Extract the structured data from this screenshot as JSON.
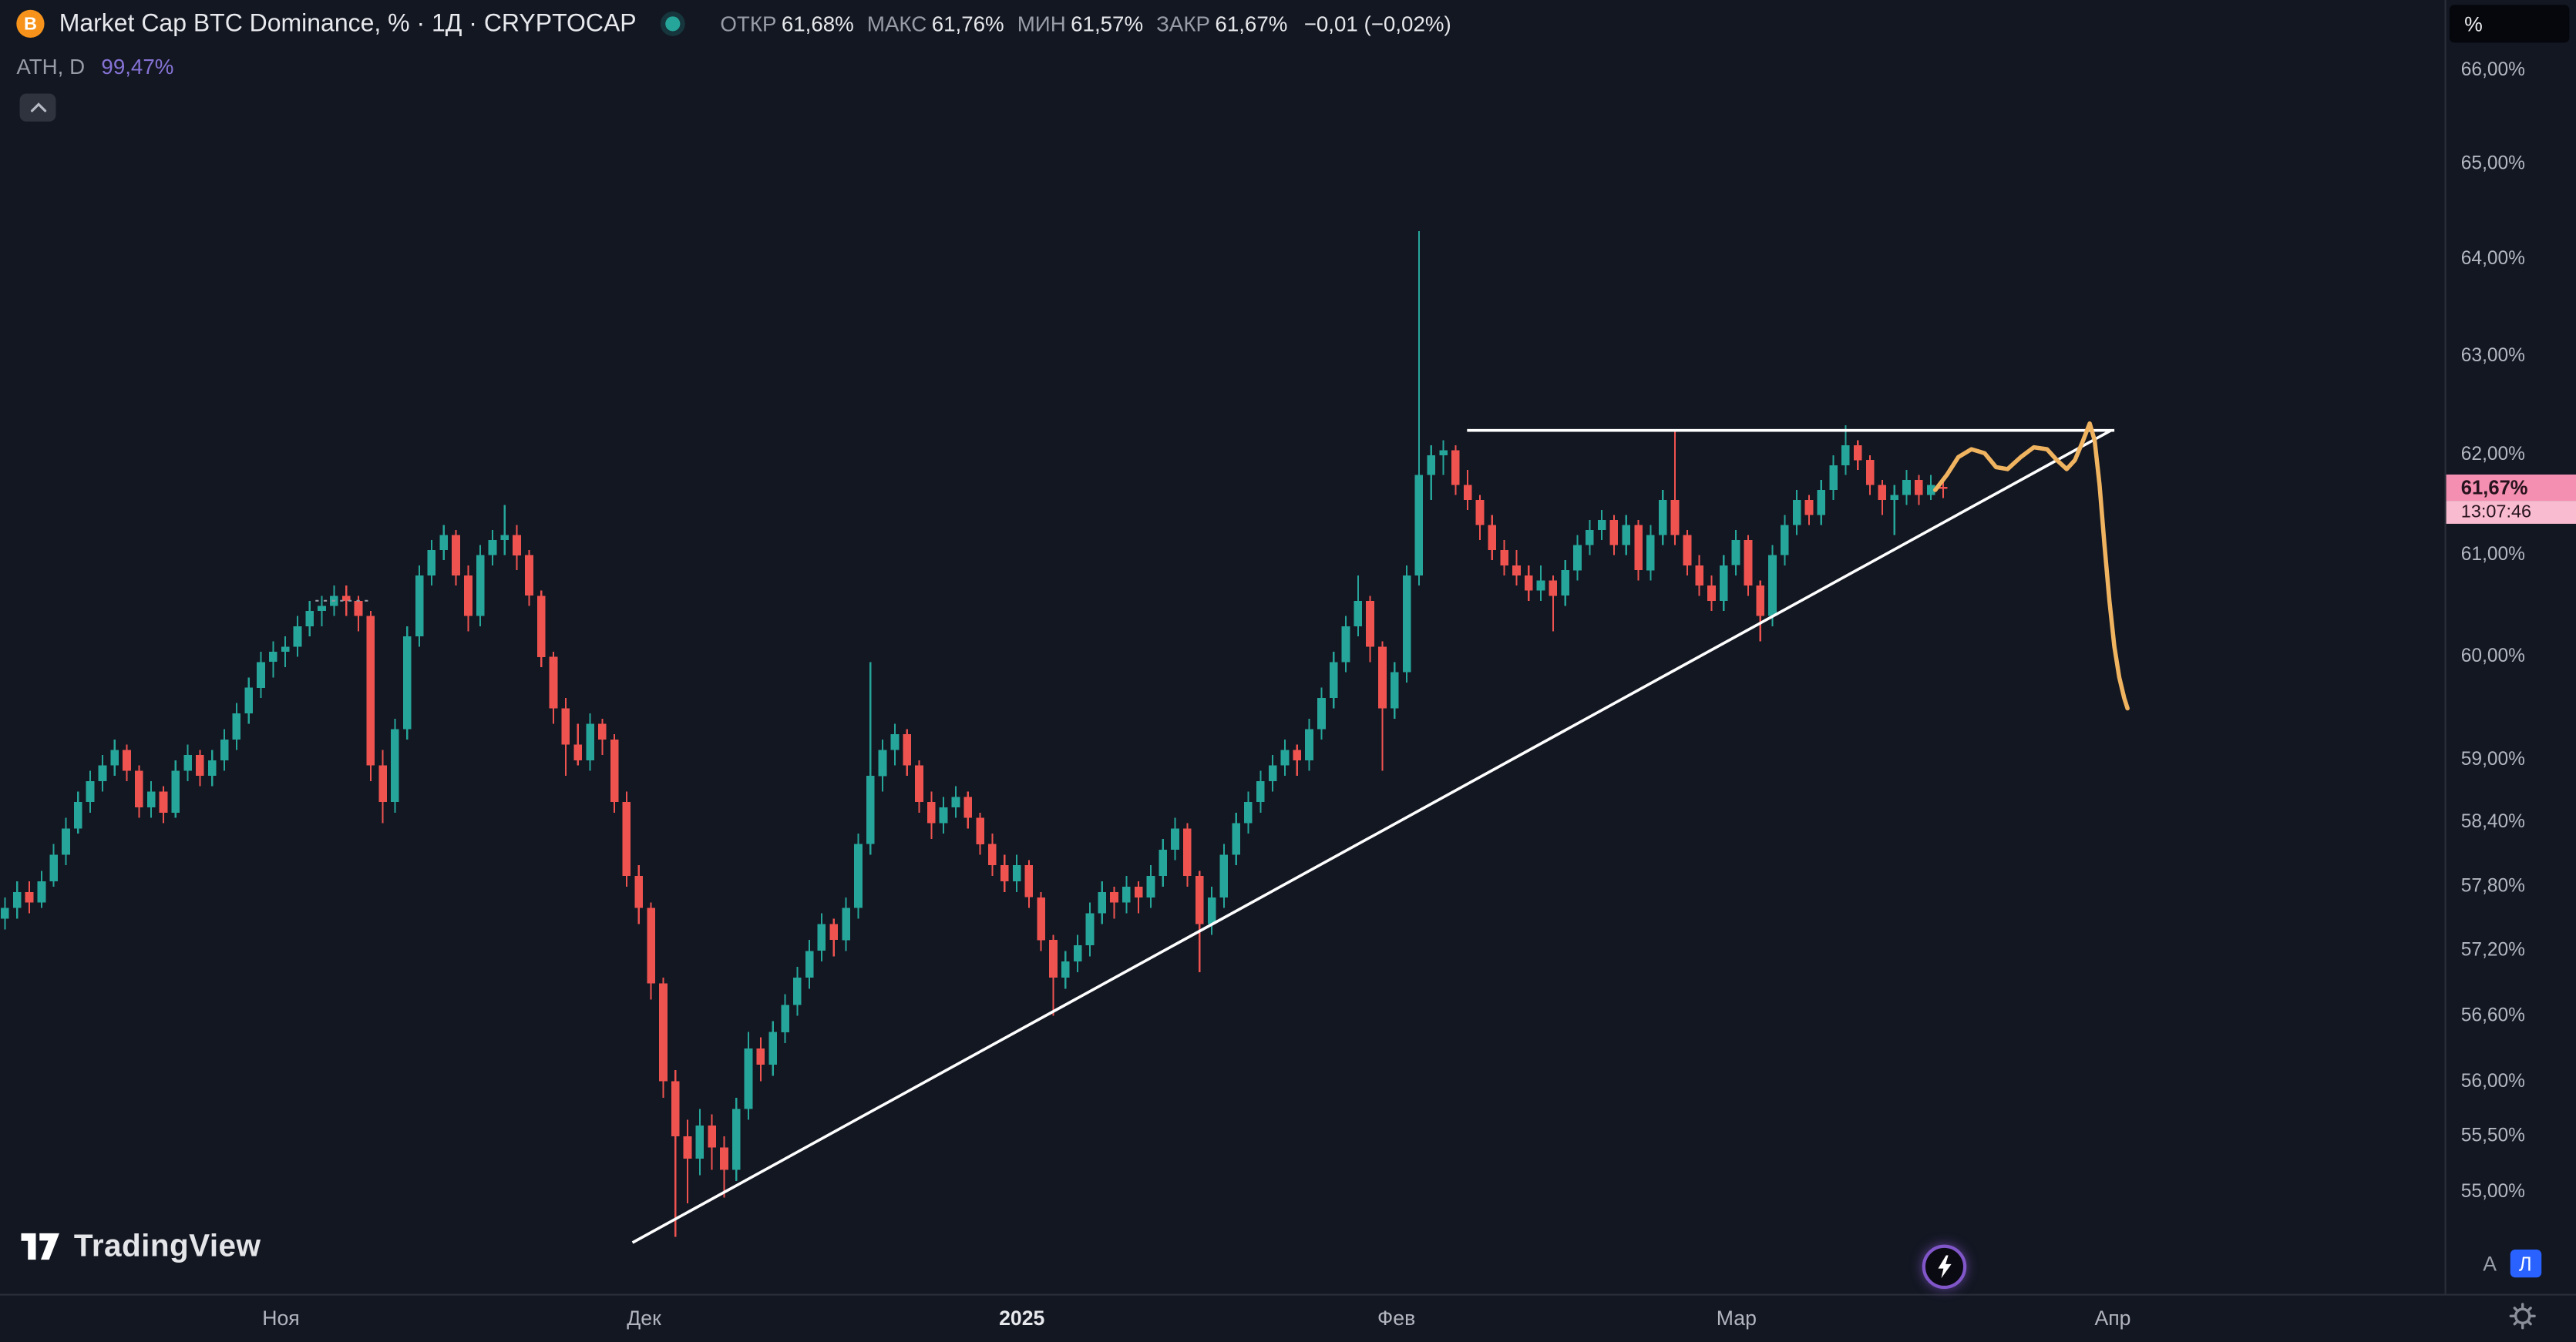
{
  "header": {
    "symbol_title": "Market Cap BTC Dominance, % · 1Д · CRYPTOCAP",
    "btc_icon_letter": "B",
    "ohlc": {
      "open_label": "ОТКР",
      "open": "61,68%",
      "high_label": "МАКС",
      "high": "61,76%",
      "low_label": "МИН",
      "low": "61,57%",
      "close_label": "ЗАКР",
      "close": "61,67%",
      "change": "−0,01 (−0,02%)"
    },
    "indicator": {
      "name": "ATH, D",
      "value": "99,47%"
    }
  },
  "price_scale": {
    "unit": "%",
    "labels": [
      {
        "text": "66,00%",
        "price": 66.0
      },
      {
        "text": "65,00%",
        "price": 65.0
      },
      {
        "text": "64,00%",
        "price": 64.0
      },
      {
        "text": "63,00%",
        "price": 63.0
      },
      {
        "text": "62,00%",
        "price": 62.0
      },
      {
        "text": "61,00%",
        "price": 61.0
      },
      {
        "text": "60,00%",
        "price": 60.0
      },
      {
        "text": "59,00%",
        "price": 59.0
      },
      {
        "text": "58,40%",
        "price": 58.4
      },
      {
        "text": "57,80%",
        "price": 57.8
      },
      {
        "text": "57,20%",
        "price": 57.2
      },
      {
        "text": "56,60%",
        "price": 56.6
      },
      {
        "text": "56,00%",
        "price": 56.0
      },
      {
        "text": "55,50%",
        "price": 55.5
      },
      {
        "text": "55,00%",
        "price": 55.0
      }
    ],
    "current": {
      "price": 61.67,
      "price_text": "61,67%",
      "countdown": "13:07:46"
    },
    "auto_label": "А",
    "log_label": "Л"
  },
  "time_scale": {
    "ticks": [
      {
        "label": "Ноя",
        "x": 171
      },
      {
        "label": "Дек",
        "x": 392
      },
      {
        "label": "2025",
        "x": 622,
        "year": true
      },
      {
        "label": "Фев",
        "x": 850
      },
      {
        "label": "Мар",
        "x": 1057
      },
      {
        "label": "Апр",
        "x": 1286
      }
    ]
  },
  "logo": {
    "text": "TradingView"
  },
  "colors": {
    "bg": "#131722",
    "panel_border": "#2a2e39",
    "up": "#26a69a",
    "down": "#ef5350",
    "white": "#ffffff",
    "orange": "#f0b35f",
    "muted": "#9598a1",
    "badge_pink": "#f48fb1",
    "badge_pink_light": "#f8bbd0",
    "accent_blue": "#2962ff",
    "purple": "#8673d6"
  },
  "chart_data": {
    "type": "candlestick",
    "title": "Market Cap BTC Dominance, % · 1Д · CRYPTOCAP",
    "ylabel": "%",
    "scale": "log",
    "ylim": [
      54.5,
      66.3
    ],
    "x_axis": {
      "x0": 3,
      "step": 7.42
    },
    "y_axis": {
      "price_top": 66.0,
      "y_top": 43,
      "price_bottom": 55.0,
      "y_bottom": 726
    },
    "candles": [
      [
        57.5,
        57.7,
        57.4,
        57.6
      ],
      [
        57.6,
        57.85,
        57.5,
        57.75
      ],
      [
        57.75,
        57.85,
        57.55,
        57.65
      ],
      [
        57.65,
        57.95,
        57.6,
        57.85
      ],
      [
        57.85,
        58.2,
        57.8,
        58.1
      ],
      [
        58.1,
        58.45,
        58.0,
        58.35
      ],
      [
        58.35,
        58.7,
        58.3,
        58.6
      ],
      [
        58.6,
        58.9,
        58.5,
        58.8
      ],
      [
        58.8,
        59.05,
        58.7,
        58.95
      ],
      [
        58.95,
        59.2,
        58.85,
        59.1
      ],
      [
        59.1,
        59.15,
        58.8,
        58.9
      ],
      [
        58.9,
        58.95,
        58.45,
        58.55
      ],
      [
        58.55,
        58.8,
        58.45,
        58.7
      ],
      [
        58.7,
        58.75,
        58.4,
        58.5
      ],
      [
        58.5,
        59.0,
        58.45,
        58.9
      ],
      [
        58.9,
        59.15,
        58.8,
        59.05
      ],
      [
        59.05,
        59.1,
        58.75,
        58.85
      ],
      [
        58.85,
        59.1,
        58.75,
        59.0
      ],
      [
        59.0,
        59.3,
        58.9,
        59.2
      ],
      [
        59.2,
        59.55,
        59.1,
        59.45
      ],
      [
        59.45,
        59.8,
        59.35,
        59.7
      ],
      [
        59.7,
        60.05,
        59.6,
        59.95
      ],
      [
        59.95,
        60.15,
        59.8,
        60.05
      ],
      [
        60.05,
        60.2,
        59.9,
        60.1
      ],
      [
        60.1,
        60.4,
        60.0,
        60.3
      ],
      [
        60.3,
        60.55,
        60.2,
        60.45
      ],
      [
        60.45,
        60.6,
        60.3,
        60.5
      ],
      [
        60.5,
        60.7,
        60.4,
        60.6
      ],
      [
        60.6,
        60.7,
        60.4,
        60.55
      ],
      [
        60.55,
        60.6,
        60.25,
        60.4
      ],
      [
        60.4,
        60.45,
        58.8,
        58.95
      ],
      [
        58.95,
        59.1,
        58.4,
        58.6
      ],
      [
        58.6,
        59.4,
        58.5,
        59.3
      ],
      [
        59.3,
        60.3,
        59.2,
        60.2
      ],
      [
        60.2,
        60.9,
        60.1,
        60.8
      ],
      [
        60.8,
        61.15,
        60.7,
        61.05
      ],
      [
        61.05,
        61.3,
        60.95,
        61.2
      ],
      [
        61.2,
        61.25,
        60.7,
        60.8
      ],
      [
        60.8,
        60.9,
        60.25,
        60.4
      ],
      [
        60.4,
        61.1,
        60.3,
        61.0
      ],
      [
        61.0,
        61.25,
        60.9,
        61.15
      ],
      [
        61.15,
        61.5,
        61.0,
        61.2
      ],
      [
        61.2,
        61.3,
        60.85,
        61.0
      ],
      [
        61.0,
        61.05,
        60.5,
        60.6
      ],
      [
        60.6,
        60.65,
        59.9,
        60.0
      ],
      [
        60.0,
        60.05,
        59.35,
        59.5
      ],
      [
        59.5,
        59.6,
        58.85,
        59.15
      ],
      [
        59.15,
        59.35,
        58.95,
        59.0
      ],
      [
        59.0,
        59.45,
        58.9,
        59.35
      ],
      [
        59.35,
        59.4,
        59.05,
        59.2
      ],
      [
        59.2,
        59.25,
        58.5,
        58.6
      ],
      [
        58.6,
        58.7,
        57.8,
        57.9
      ],
      [
        57.9,
        58.0,
        57.45,
        57.6
      ],
      [
        57.6,
        57.65,
        56.75,
        56.9
      ],
      [
        56.9,
        56.95,
        55.85,
        56.0
      ],
      [
        56.0,
        56.1,
        54.6,
        55.5
      ],
      [
        55.5,
        55.65,
        54.9,
        55.3
      ],
      [
        55.3,
        55.75,
        55.15,
        55.6
      ],
      [
        55.6,
        55.7,
        55.2,
        55.4
      ],
      [
        55.4,
        55.5,
        54.95,
        55.2
      ],
      [
        55.2,
        55.85,
        55.1,
        55.75
      ],
      [
        55.75,
        56.45,
        55.65,
        56.3
      ],
      [
        56.3,
        56.4,
        56.0,
        56.15
      ],
      [
        56.15,
        56.55,
        56.05,
        56.45
      ],
      [
        56.45,
        56.8,
        56.35,
        56.7
      ],
      [
        56.7,
        57.05,
        56.6,
        56.95
      ],
      [
        56.95,
        57.3,
        56.85,
        57.2
      ],
      [
        57.2,
        57.55,
        57.1,
        57.45
      ],
      [
        57.45,
        57.5,
        57.15,
        57.3
      ],
      [
        57.3,
        57.7,
        57.2,
        57.6
      ],
      [
        57.6,
        58.3,
        57.5,
        58.2
      ],
      [
        58.2,
        59.95,
        58.1,
        58.85
      ],
      [
        58.85,
        59.2,
        58.7,
        59.1
      ],
      [
        59.1,
        59.35,
        58.95,
        59.25
      ],
      [
        59.25,
        59.3,
        58.85,
        58.95
      ],
      [
        58.95,
        59.0,
        58.5,
        58.6
      ],
      [
        58.6,
        58.7,
        58.25,
        58.4
      ],
      [
        58.4,
        58.65,
        58.3,
        58.55
      ],
      [
        58.55,
        58.75,
        58.45,
        58.65
      ],
      [
        58.65,
        58.7,
        58.35,
        58.45
      ],
      [
        58.45,
        58.5,
        58.1,
        58.2
      ],
      [
        58.2,
        58.3,
        57.9,
        58.0
      ],
      [
        58.0,
        58.1,
        57.75,
        57.85
      ],
      [
        57.85,
        58.1,
        57.75,
        58.0
      ],
      [
        58.0,
        58.05,
        57.6,
        57.7
      ],
      [
        57.7,
        57.75,
        57.2,
        57.3
      ],
      [
        57.3,
        57.35,
        56.6,
        56.95
      ],
      [
        56.95,
        57.2,
        56.85,
        57.1
      ],
      [
        57.1,
        57.35,
        57.0,
        57.25
      ],
      [
        57.25,
        57.65,
        57.15,
        57.55
      ],
      [
        57.55,
        57.85,
        57.45,
        57.75
      ],
      [
        57.75,
        57.8,
        57.5,
        57.65
      ],
      [
        57.65,
        57.9,
        57.55,
        57.8
      ],
      [
        57.8,
        57.85,
        57.55,
        57.7
      ],
      [
        57.7,
        58.0,
        57.6,
        57.9
      ],
      [
        57.9,
        58.25,
        57.8,
        58.15
      ],
      [
        58.15,
        58.45,
        58.05,
        58.35
      ],
      [
        58.35,
        58.4,
        57.8,
        57.9
      ],
      [
        57.9,
        57.95,
        57.0,
        57.45
      ],
      [
        57.45,
        57.8,
        57.35,
        57.7
      ],
      [
        57.7,
        58.2,
        57.6,
        58.1
      ],
      [
        58.1,
        58.5,
        58.0,
        58.4
      ],
      [
        58.4,
        58.7,
        58.3,
        58.6
      ],
      [
        58.6,
        58.9,
        58.5,
        58.8
      ],
      [
        58.8,
        59.05,
        58.7,
        58.95
      ],
      [
        58.95,
        59.2,
        58.85,
        59.1
      ],
      [
        59.1,
        59.15,
        58.85,
        59.0
      ],
      [
        59.0,
        59.4,
        58.9,
        59.3
      ],
      [
        59.3,
        59.7,
        59.2,
        59.6
      ],
      [
        59.6,
        60.05,
        59.5,
        59.95
      ],
      [
        59.95,
        60.4,
        59.85,
        60.3
      ],
      [
        60.3,
        60.8,
        60.2,
        60.55
      ],
      [
        60.55,
        60.6,
        59.95,
        60.1
      ],
      [
        60.1,
        60.15,
        58.9,
        59.5
      ],
      [
        59.5,
        59.95,
        59.4,
        59.85
      ],
      [
        59.85,
        60.9,
        59.75,
        60.8
      ],
      [
        60.8,
        64.3,
        60.7,
        61.8
      ],
      [
        61.8,
        62.1,
        61.55,
        62.0
      ],
      [
        62.0,
        62.15,
        61.8,
        62.05
      ],
      [
        62.05,
        62.1,
        61.6,
        61.7
      ],
      [
        61.7,
        61.85,
        61.45,
        61.55
      ],
      [
        61.55,
        61.6,
        61.15,
        61.3
      ],
      [
        61.3,
        61.4,
        60.95,
        61.05
      ],
      [
        61.05,
        61.15,
        60.8,
        60.9
      ],
      [
        60.9,
        61.05,
        60.7,
        60.8
      ],
      [
        60.8,
        60.9,
        60.55,
        60.65
      ],
      [
        60.65,
        60.9,
        60.55,
        60.75
      ],
      [
        60.75,
        60.8,
        60.25,
        60.6
      ],
      [
        60.6,
        60.95,
        60.5,
        60.85
      ],
      [
        60.85,
        61.2,
        60.75,
        61.1
      ],
      [
        61.1,
        61.35,
        61.0,
        61.25
      ],
      [
        61.25,
        61.45,
        61.15,
        61.35
      ],
      [
        61.35,
        61.4,
        61.0,
        61.1
      ],
      [
        61.1,
        61.4,
        61.0,
        61.3
      ],
      [
        61.3,
        61.35,
        60.75,
        60.85
      ],
      [
        60.85,
        61.3,
        60.75,
        61.2
      ],
      [
        61.2,
        61.65,
        61.1,
        61.55
      ],
      [
        61.55,
        62.25,
        61.1,
        61.2
      ],
      [
        61.2,
        61.25,
        60.8,
        60.9
      ],
      [
        60.9,
        61.0,
        60.6,
        60.7
      ],
      [
        60.7,
        60.8,
        60.45,
        60.55
      ],
      [
        60.55,
        61.0,
        60.45,
        60.9
      ],
      [
        60.9,
        61.25,
        60.8,
        61.15
      ],
      [
        61.15,
        61.2,
        60.6,
        60.7
      ],
      [
        60.7,
        60.75,
        60.15,
        60.4
      ],
      [
        60.4,
        61.1,
        60.3,
        61.0
      ],
      [
        61.0,
        61.4,
        60.9,
        61.3
      ],
      [
        61.3,
        61.65,
        61.2,
        61.55
      ],
      [
        61.55,
        61.6,
        61.3,
        61.4
      ],
      [
        61.4,
        61.75,
        61.3,
        61.65
      ],
      [
        61.65,
        62.0,
        61.55,
        61.9
      ],
      [
        61.9,
        62.3,
        61.8,
        62.1
      ],
      [
        62.1,
        62.15,
        61.85,
        61.95
      ],
      [
        61.95,
        62.0,
        61.6,
        61.7
      ],
      [
        61.7,
        61.75,
        61.4,
        61.55
      ],
      [
        61.55,
        61.7,
        61.2,
        61.6
      ],
      [
        61.6,
        61.85,
        61.5,
        61.75
      ],
      [
        61.75,
        61.8,
        61.5,
        61.6
      ],
      [
        61.6,
        61.8,
        61.55,
        61.7
      ],
      [
        61.68,
        61.76,
        61.57,
        61.67
      ]
    ],
    "overlays": {
      "trendline": {
        "x1": 385,
        "price1": 54.55,
        "x2": 1285,
        "price2": 62.25
      },
      "resistance": {
        "x1": 893,
        "x2": 1287,
        "price": 62.25
      },
      "ath_line": {
        "x1": 192,
        "x2": 226,
        "price": 60.55
      },
      "freehand": {
        "color": "#f0b35f",
        "points": [
          [
            1178,
            61.65
          ],
          [
            1185,
            61.8
          ],
          [
            1192,
            61.98
          ],
          [
            1200,
            62.06
          ],
          [
            1208,
            62.02
          ],
          [
            1215,
            61.88
          ],
          [
            1222,
            61.86
          ],
          [
            1230,
            61.98
          ],
          [
            1238,
            62.08
          ],
          [
            1246,
            62.06
          ],
          [
            1252,
            61.95
          ],
          [
            1258,
            61.86
          ],
          [
            1263,
            61.95
          ],
          [
            1268,
            62.15
          ],
          [
            1272,
            62.32
          ],
          [
            1275,
            62.15
          ],
          [
            1278,
            61.7
          ],
          [
            1281,
            61.1
          ],
          [
            1284,
            60.55
          ],
          [
            1287,
            60.1
          ],
          [
            1290,
            59.8
          ],
          [
            1293,
            59.6
          ],
          [
            1295,
            59.5
          ]
        ]
      }
    }
  }
}
